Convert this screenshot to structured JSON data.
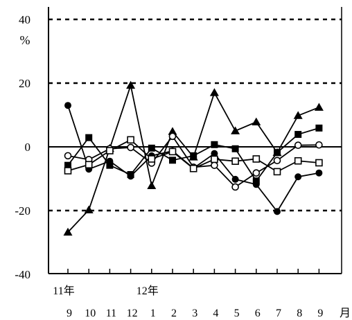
{
  "chart_data": {
    "type": "line",
    "title": "",
    "xlabel": "",
    "ylabel": "",
    "unit_label": "%",
    "x_unit_label": "月",
    "ylim": [
      -40,
      40
    ],
    "yticks": [
      "40",
      "20",
      "0",
      "-20",
      "-40"
    ],
    "grid": "dashed at 20 and -20 and 40; solid at 0",
    "months": [
      "9",
      "10",
      "11",
      "12",
      "1",
      "2",
      "3",
      "4",
      "5",
      "6",
      "7",
      "8",
      "9"
    ],
    "year_labels": [
      {
        "index": 0,
        "text": "11年"
      },
      {
        "index": 4,
        "text": "12年"
      }
    ],
    "series": [
      {
        "marker": "filled-triangle",
        "values": [
          -26.8,
          -19.8,
          -0.5,
          19.3,
          -12.2,
          4.8,
          -3.2,
          17.0,
          5.0,
          7.8,
          -1.8,
          9.8,
          12.4
        ]
      },
      {
        "marker": "filled-circle",
        "values": [
          13.0,
          -7.0,
          -4.5,
          -9.2,
          -2.8,
          -1.3,
          -6.7,
          -2.1,
          -10.2,
          -11.8,
          -20.3,
          -9.4,
          -8.2
        ]
      },
      {
        "marker": "filled-square",
        "values": [
          -5.8,
          2.9,
          -5.8,
          -8.7,
          -0.4,
          -4.2,
          -2.8,
          0.7,
          -0.6,
          -10.7,
          -1.8,
          3.9,
          5.9
        ]
      },
      {
        "marker": "open-circle",
        "values": [
          -2.8,
          -4.0,
          -0.6,
          -0.2,
          -5.1,
          3.3,
          -6.4,
          -5.8,
          -12.6,
          -8.2,
          -4.3,
          0.5,
          0.6
        ]
      },
      {
        "marker": "open-square",
        "values": [
          -7.5,
          -5.6,
          -1.2,
          2.2,
          -3.8,
          -1.5,
          -6.8,
          -3.9,
          -4.5,
          -3.8,
          -7.8,
          -4.4,
          -5.0
        ]
      }
    ]
  }
}
